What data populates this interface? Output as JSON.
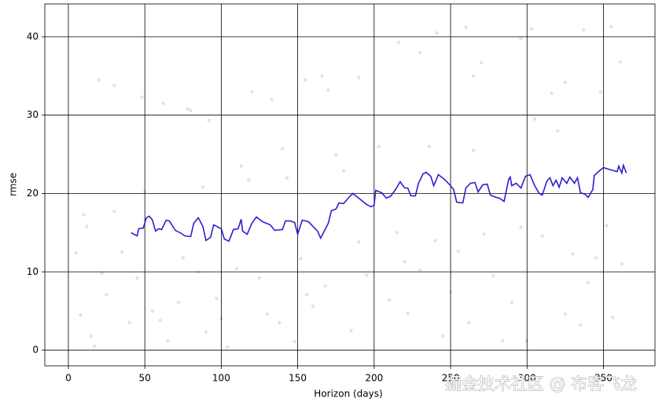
{
  "chart_data": {
    "type": "line",
    "xlabel": "Horizon (days)",
    "ylabel": "rmse",
    "xlim": [
      -15.4,
      383.7
    ],
    "ylim": [
      -2.0,
      44.2
    ],
    "xticks": [
      0,
      50,
      100,
      150,
      200,
      250,
      300,
      350
    ],
    "yticks": [
      0,
      10,
      20,
      30,
      40
    ],
    "grid": true,
    "grid_color": "#000000",
    "line": {
      "color": "#2d1fcf",
      "x": [
        41,
        45,
        46,
        49,
        51,
        53,
        55,
        57,
        59,
        61,
        64,
        66,
        70,
        74,
        76,
        80,
        82,
        85,
        88,
        90,
        93,
        95,
        100,
        102,
        105,
        108,
        111,
        113,
        114,
        117,
        120,
        123,
        127,
        132,
        135,
        140,
        142,
        145,
        148,
        150,
        153,
        157,
        163,
        165,
        170,
        172,
        175,
        177,
        180,
        183,
        186,
        190,
        195,
        198,
        200,
        201,
        205,
        208,
        211,
        214,
        217,
        220,
        222,
        224,
        227,
        229,
        232,
        234,
        237,
        239,
        242,
        246,
        250,
        252,
        254,
        258,
        260,
        263,
        266,
        268,
        271,
        274,
        276,
        280,
        282,
        285,
        288,
        289,
        290,
        293,
        296,
        299,
        302,
        305,
        308,
        310,
        313,
        315,
        317,
        319,
        321,
        323,
        326,
        328,
        331,
        333,
        335,
        338,
        340,
        343,
        344,
        348,
        350,
        355,
        359,
        360,
        362,
        363,
        365
      ],
      "values": [
        15.0,
        14.6,
        15.5,
        15.6,
        16.9,
        17.1,
        16.6,
        15.2,
        15.5,
        15.4,
        16.6,
        16.5,
        15.3,
        14.9,
        14.6,
        14.5,
        16.2,
        16.9,
        15.8,
        14.0,
        14.4,
        16.0,
        15.5,
        14.2,
        13.9,
        15.4,
        15.5,
        16.7,
        15.2,
        14.8,
        16.2,
        17.0,
        16.4,
        16.0,
        15.3,
        15.4,
        16.5,
        16.5,
        16.3,
        14.8,
        16.6,
        16.4,
        15.2,
        14.3,
        16.2,
        17.8,
        18.0,
        18.8,
        18.7,
        19.4,
        20.0,
        19.4,
        18.6,
        18.3,
        18.5,
        20.4,
        20.1,
        19.4,
        19.7,
        20.5,
        21.5,
        20.7,
        20.7,
        19.7,
        19.7,
        21.3,
        22.5,
        22.7,
        22.2,
        21.0,
        22.4,
        21.8,
        21.0,
        20.5,
        18.9,
        18.8,
        20.7,
        21.3,
        21.4,
        20.2,
        21.1,
        21.2,
        19.8,
        19.5,
        19.4,
        19.0,
        21.8,
        22.1,
        21.0,
        21.3,
        20.7,
        22.2,
        22.4,
        21.0,
        20.0,
        19.8,
        21.6,
        22.0,
        21.0,
        21.7,
        20.8,
        22.0,
        21.3,
        22.1,
        21.3,
        22.0,
        20.1,
        19.9,
        19.5,
        20.5,
        22.3,
        23.0,
        23.3,
        23.0,
        22.8,
        23.5,
        22.6,
        23.6,
        22.6
      ]
    },
    "scatter": {
      "color": "#cfcfcf",
      "x": [
        20,
        30,
        48,
        62,
        78,
        80,
        92,
        120,
        133,
        155,
        166,
        170,
        190,
        216,
        230,
        241,
        260,
        265,
        270,
        296,
        303,
        325,
        337,
        355,
        361,
        5,
        10,
        12,
        8,
        15,
        17,
        22,
        25,
        30,
        35,
        40,
        45,
        50,
        55,
        60,
        65,
        72,
        75,
        85,
        88,
        90,
        97,
        100,
        104,
        110,
        113,
        118,
        125,
        130,
        138,
        140,
        143,
        148,
        152,
        156,
        160,
        168,
        175,
        180,
        185,
        190,
        195,
        203,
        210,
        215,
        220,
        222,
        230,
        236,
        240,
        245,
        250,
        255,
        262,
        265,
        272,
        278,
        284,
        290,
        296,
        300,
        305,
        310,
        316,
        320,
        325,
        330,
        335,
        340,
        345,
        348,
        352,
        356,
        362
      ],
      "values": [
        34.5,
        33.8,
        32.3,
        31.5,
        30.8,
        30.6,
        29.3,
        33,
        32,
        34.5,
        35,
        33.2,
        34.8,
        39.3,
        38,
        40.5,
        41.2,
        35,
        36.7,
        39.8,
        41,
        34.2,
        40.9,
        41.3,
        36.8,
        12.4,
        17.3,
        15.8,
        4.5,
        1.8,
        0.5,
        9.8,
        7.1,
        17.7,
        12.5,
        3.5,
        9.2,
        20.2,
        5,
        3.8,
        1.2,
        6.1,
        11.8,
        10,
        20.8,
        2.3,
        6.6,
        4,
        0.4,
        10.4,
        23.5,
        21.7,
        9.2,
        4.6,
        3.5,
        25.7,
        22,
        1.1,
        11.7,
        7.1,
        5.6,
        8.2,
        24.9,
        22.9,
        2.5,
        13.8,
        9.6,
        26,
        6.4,
        15,
        11.3,
        4.7,
        10.2,
        26,
        14,
        1.8,
        7.4,
        12.6,
        3.5,
        25.5,
        14.8,
        9.5,
        1.2,
        6.1,
        15.7,
        1.2,
        29.5,
        14.6,
        32.8,
        28,
        4.6,
        12.3,
        3.2,
        8.6,
        11.8,
        33,
        15.9,
        4.2,
        11
      ]
    },
    "annotations": [
      "掘金技术社区 @ 布客飞龙"
    ]
  }
}
